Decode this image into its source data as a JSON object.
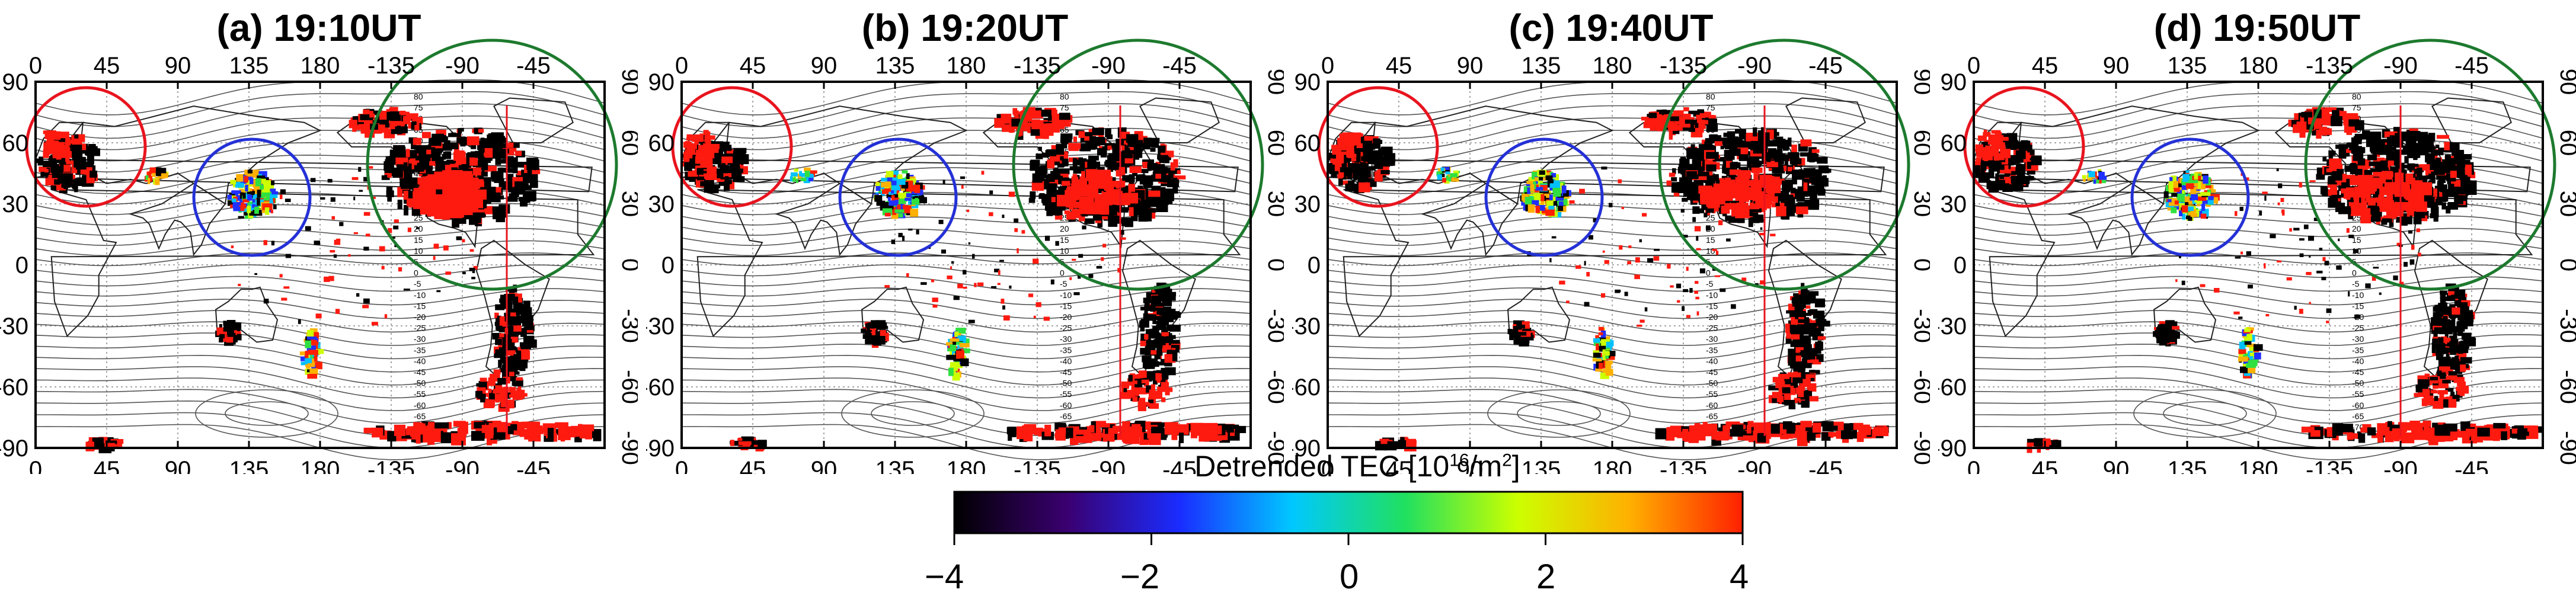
{
  "panels": [
    {
      "title": "(a) 19:10UT"
    },
    {
      "title": "(b) 19:20UT"
    },
    {
      "title": "(c) 19:40UT"
    },
    {
      "title": "(d) 19:50UT"
    }
  ],
  "map": {
    "lon_ticks": [
      "0",
      "45",
      "90",
      "135",
      "180",
      "-135",
      "-90",
      "-45"
    ],
    "lat_ticks": [
      "90",
      "60",
      "30",
      "0",
      "-30",
      "-60",
      "-90"
    ],
    "contour_labels": [
      "80",
      "75",
      "70",
      "65",
      "60",
      "55",
      "50",
      "45",
      "40",
      "35",
      "30",
      "25",
      "20",
      "15",
      "10",
      "5",
      "0",
      "-5",
      "-10",
      "-15",
      "-20",
      "-25",
      "-30",
      "-35",
      "-40",
      "-45",
      "-50",
      "-55",
      "-60",
      "-65",
      "-70"
    ]
  },
  "circle_colors": {
    "red": "#e8141e",
    "blue": "#2431d6",
    "green": "#1d7a2e"
  },
  "colorbar": {
    "title_main": "Detrended TEC  [10",
    "title_sup": "16",
    "title_tail": "/m",
    "title_sup2": "2",
    "title_end": "]",
    "tick_labels": [
      "−4",
      "−2",
      "0",
      "2",
      "4"
    ],
    "range": [
      -4,
      4
    ],
    "colors": [
      "#000000",
      "#3a0070",
      "#1a2cff",
      "#00c8ff",
      "#20e060",
      "#ccff00",
      "#ffb000",
      "#ff2000"
    ]
  }
}
